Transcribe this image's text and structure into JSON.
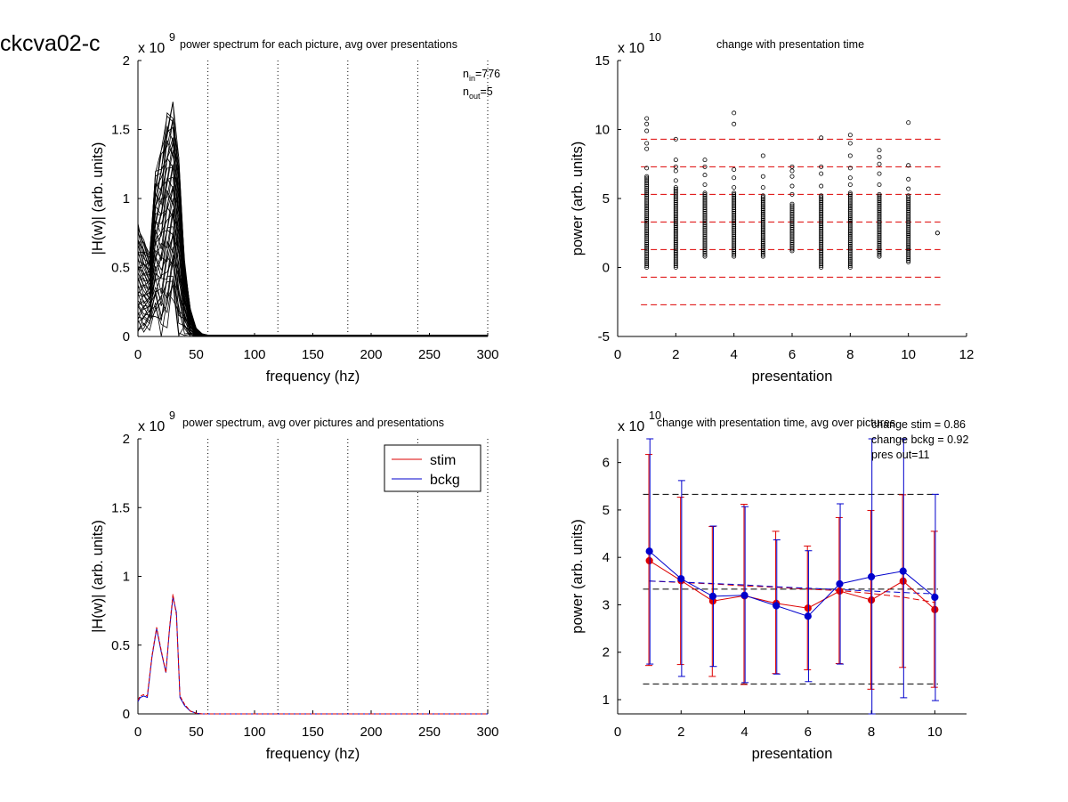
{
  "figure_title": "ckcva02-c",
  "colors": {
    "stim": "#dd0000",
    "bckg": "#0000cc",
    "black": "#000000",
    "dash_red": "#dd0000",
    "dash_black": "#000000"
  },
  "chart_data": [
    {
      "id": "p1",
      "type": "line",
      "title": "power spectrum for each picture, avg over presentations",
      "xlabel": "frequency (hz)",
      "ylabel": "|H(w)| (arb. units)",
      "exponent": "x 10",
      "exponent_power": "9",
      "xlim": [
        0,
        300
      ],
      "ylim": [
        0,
        2
      ],
      "xticks": [
        "0",
        "50",
        "100",
        "150",
        "200",
        "250",
        "300"
      ],
      "yticks": [
        "0",
        "0.5",
        "1",
        "1.5",
        "2"
      ],
      "vlines_dotted": [
        60,
        120,
        180,
        240,
        300
      ],
      "annotation_lines": [
        {
          "main": "n",
          "sub": "in",
          "rest": "=776"
        },
        {
          "main": "n",
          "sub": "out",
          "rest": "=5"
        }
      ],
      "envelope": {
        "x": [
          0,
          5,
          10,
          15,
          20,
          25,
          30,
          35,
          40,
          45,
          50,
          55,
          60,
          300
        ],
        "upper": [
          0.82,
          0.7,
          0.6,
          1.2,
          1.35,
          1.62,
          1.7,
          1.3,
          0.55,
          0.2,
          0.06,
          0.02,
          0.01,
          0.01
        ],
        "lower": [
          0.03,
          0.05,
          0.08,
          0.15,
          0.05,
          0.15,
          0.3,
          0.05,
          0.02,
          0,
          0,
          0,
          0,
          0
        ]
      },
      "n_traces": 45
    },
    {
      "id": "p2",
      "type": "scatter",
      "title": "change with presentation time",
      "xlabel": "presentation",
      "ylabel": "power (arb. units)",
      "exponent": "x 10",
      "exponent_power": "10",
      "xlim": [
        0,
        12
      ],
      "ylim": [
        -5,
        15
      ],
      "xticks": [
        "0",
        "2",
        "4",
        "6",
        "8",
        "10",
        "12"
      ],
      "yticks": [
        "-5",
        "0",
        "5",
        "10",
        "15"
      ],
      "hlines_dashed_red": [
        9.3,
        7.3,
        5.3,
        3.3,
        1.3,
        -0.7,
        -2.7
      ],
      "scatter": [
        {
          "x": 1,
          "ymin": 0.0,
          "ymax": 6.6,
          "outliers": [
            7.2,
            8.6,
            9.0,
            9.9,
            10.4,
            10.8
          ]
        },
        {
          "x": 2,
          "ymin": 0.0,
          "ymax": 5.8,
          "outliers": [
            6.3,
            7.0,
            7.3,
            7.8,
            9.3
          ]
        },
        {
          "x": 3,
          "ymin": 0.8,
          "ymax": 5.4,
          "outliers": [
            6.0,
            6.7,
            7.3,
            7.8
          ]
        },
        {
          "x": 4,
          "ymin": 0.8,
          "ymax": 5.4,
          "outliers": [
            5.8,
            6.5,
            7.1,
            10.4,
            11.2
          ]
        },
        {
          "x": 5,
          "ymin": 0.8,
          "ymax": 5.2,
          "outliers": [
            5.8,
            6.6,
            8.1
          ]
        },
        {
          "x": 6,
          "ymin": 1.2,
          "ymax": 4.6,
          "outliers": [
            5.3,
            5.9,
            6.6,
            7.0,
            7.3
          ]
        },
        {
          "x": 7,
          "ymin": 0.0,
          "ymax": 5.2,
          "outliers": [
            5.9,
            6.8,
            7.3,
            9.4
          ]
        },
        {
          "x": 8,
          "ymin": 0.0,
          "ymax": 5.4,
          "outliers": [
            6.0,
            6.5,
            7.2,
            8.1,
            9.0,
            9.6
          ]
        },
        {
          "x": 9,
          "ymin": 0.8,
          "ymax": 5.3,
          "outliers": [
            6.0,
            6.8,
            7.5,
            8.0,
            8.5
          ]
        },
        {
          "x": 10,
          "ymin": 0.4,
          "ymax": 5.2,
          "outliers": [
            5.7,
            6.4,
            7.4,
            10.5
          ]
        },
        {
          "x": 11,
          "ymin": 2.5,
          "ymax": 2.5,
          "outliers": []
        }
      ]
    },
    {
      "id": "p3",
      "type": "line",
      "title": "power spectrum, avg over pictures and presentations",
      "xlabel": "frequency (hz)",
      "ylabel": "|H(w)| (arb. units)",
      "exponent": "x 10",
      "exponent_power": "9",
      "xlim": [
        0,
        300
      ],
      "ylim": [
        0,
        2
      ],
      "xticks": [
        "0",
        "50",
        "100",
        "150",
        "200",
        "250",
        "300"
      ],
      "yticks": [
        "0",
        "0.5",
        "1",
        "1.5",
        "2"
      ],
      "vlines_dotted": [
        60,
        120,
        180,
        240,
        300
      ],
      "legend": [
        "stim",
        "bckg"
      ],
      "series": [
        {
          "name": "stim",
          "x": [
            0,
            2,
            5,
            8,
            12,
            16,
            20,
            24,
            27,
            30,
            33,
            36,
            40,
            45,
            50,
            55,
            60,
            300
          ],
          "values": [
            0.1,
            0.13,
            0.14,
            0.13,
            0.42,
            0.63,
            0.46,
            0.3,
            0.62,
            0.87,
            0.72,
            0.13,
            0.07,
            0.02,
            0.005,
            0,
            0,
            0
          ]
        },
        {
          "name": "bckg",
          "x": [
            0,
            2,
            5,
            8,
            12,
            16,
            20,
            24,
            27,
            30,
            33,
            36,
            40,
            45,
            50,
            55,
            60,
            300
          ],
          "values": [
            0.09,
            0.12,
            0.13,
            0.12,
            0.41,
            0.62,
            0.45,
            0.3,
            0.61,
            0.85,
            0.74,
            0.12,
            0.06,
            0.02,
            0.005,
            0,
            0,
            0
          ]
        }
      ]
    },
    {
      "id": "p4",
      "type": "line",
      "title": "change with presentation time, avg over pictures",
      "xlabel": "presentation",
      "ylabel": "power (arb. units)",
      "exponent": "x 10",
      "exponent_power": "10",
      "xlim": [
        0,
        11
      ],
      "ylim": [
        0.7,
        6.5
      ],
      "xticks": [
        "0",
        "2",
        "4",
        "6",
        "8",
        "10"
      ],
      "yticks": [
        "1",
        "2",
        "3",
        "4",
        "5",
        "6"
      ],
      "annotations": [
        "change stim = 0.86",
        "change bckg = 0.92",
        "pres out=11"
      ],
      "hlines_dashed_black": [
        5.33,
        3.33,
        1.33
      ],
      "categories": [
        1,
        2,
        3,
        4,
        5,
        6,
        7,
        8,
        9,
        10
      ],
      "series": [
        {
          "name": "stim",
          "values": [
            3.93,
            3.51,
            3.08,
            3.19,
            3.03,
            2.93,
            3.29,
            3.1,
            3.5,
            2.9
          ],
          "err_upper": [
            6.17,
            5.27,
            4.65,
            5.12,
            4.55,
            4.24,
            4.84,
            4.99,
            5.32,
            4.55
          ],
          "err_lower": [
            1.72,
            1.74,
            1.49,
            1.32,
            1.55,
            1.63,
            1.76,
            1.22,
            1.68,
            1.26
          ]
        },
        {
          "name": "bckg",
          "values": [
            4.13,
            3.55,
            3.18,
            3.2,
            2.98,
            2.76,
            3.44,
            3.59,
            3.71,
            3.16
          ],
          "err_upper": [
            6.5,
            5.62,
            4.66,
            5.07,
            4.37,
            4.14,
            5.13,
            6.5,
            6.5,
            5.33
          ],
          "err_lower": [
            1.75,
            1.49,
            1.7,
            1.36,
            1.54,
            1.38,
            1.75,
            0.7,
            1.04,
            0.98
          ]
        }
      ],
      "trend_lines": [
        {
          "name": "stim-trend",
          "values": [
            3.5,
            3.47,
            3.44,
            3.4,
            3.37,
            3.33,
            3.3,
            3.24,
            3.16,
            3.05
          ]
        },
        {
          "name": "bckg-trend",
          "values": [
            3.5,
            3.48,
            3.45,
            3.42,
            3.38,
            3.35,
            3.32,
            3.29,
            3.26,
            3.23
          ]
        }
      ]
    }
  ]
}
